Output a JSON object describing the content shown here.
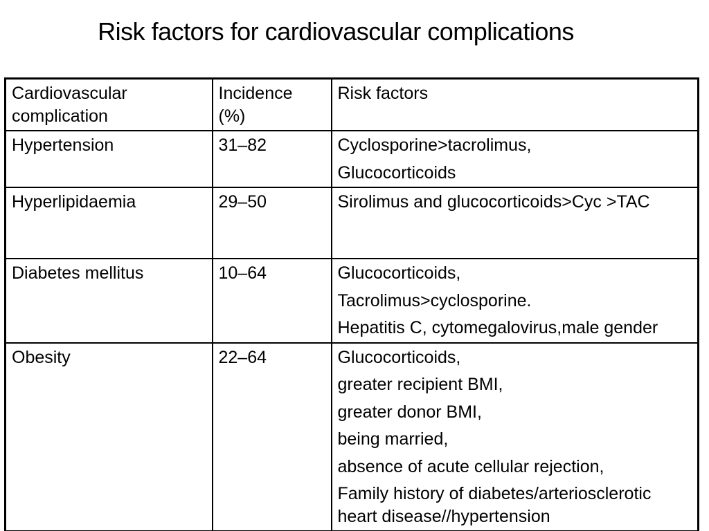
{
  "slide": {
    "title": "Risk factors for cardiovascular complications"
  },
  "table": {
    "columns": [
      "Cardiovascular\ncomplication",
      "Incidence\n(%)",
      "Risk factors"
    ],
    "rows": [
      {
        "complication": "Hypertension",
        "incidence": "31–82",
        "risk_factors": [
          "Cyclosporine>tacrolimus,",
          "Glucocorticoids"
        ]
      },
      {
        "complication": "Hyperlipidaemia",
        "incidence": "29–50",
        "risk_factors": [
          "Sirolimus and glucocorticoids>Cyc >TAC"
        ]
      },
      {
        "complication": "Diabetes mellitus",
        "incidence": "10–64",
        "risk_factors": [
          "Glucocorticoids,",
          "Tacrolimus>cyclosporine.",
          "Hepatitis C, cytomegalovirus,male gender"
        ]
      },
      {
        "complication": "Obesity",
        "incidence": "22–64",
        "risk_factors": [
          "Glucocorticoids,",
          "greater recipient BMI,",
          "greater donor BMI,",
          "being married,",
          "absence of acute cellular rejection,",
          "Family history of diabetes/arteriosclerotic heart disease//hypertension"
        ]
      }
    ]
  },
  "colors": {
    "text": "#000000",
    "background": "#ffffff",
    "border": "#000000"
  }
}
